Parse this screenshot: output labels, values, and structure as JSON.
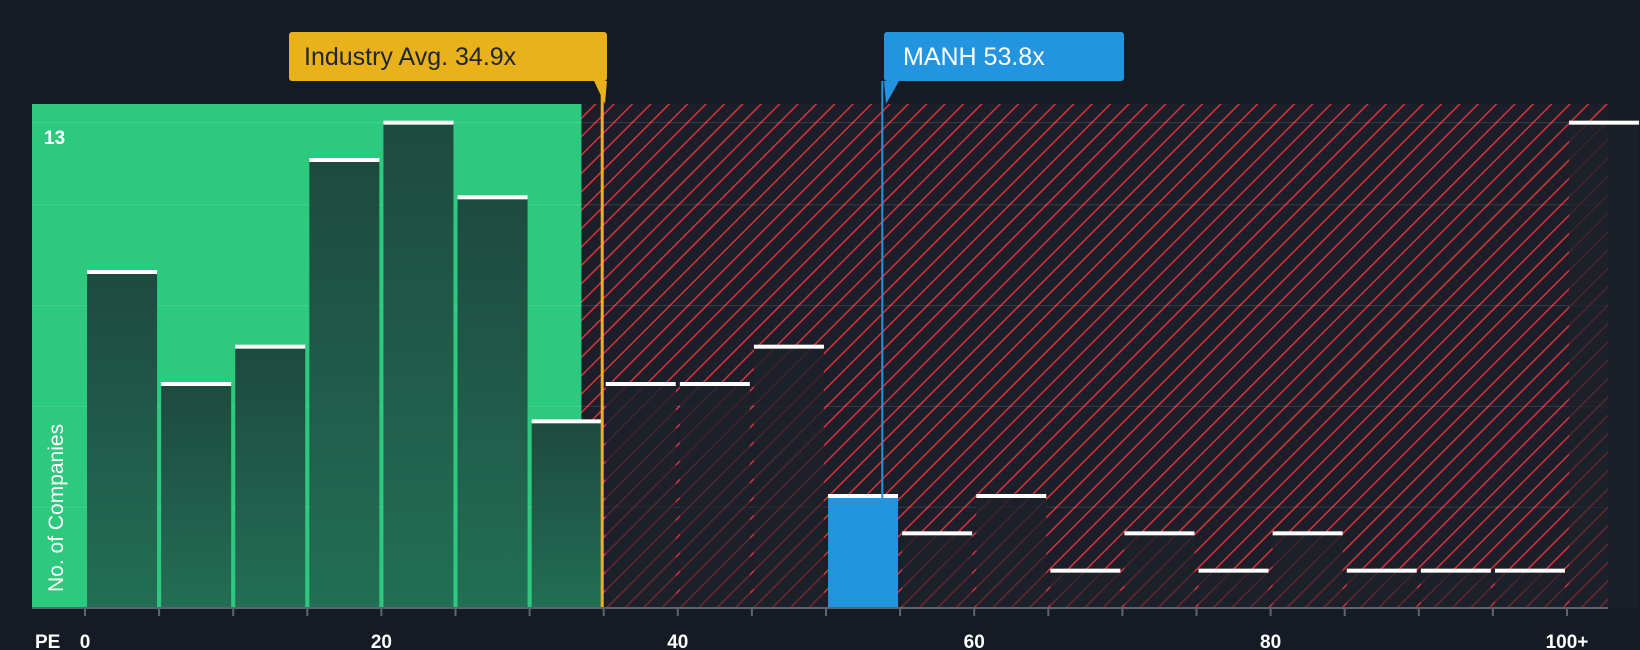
{
  "chart_data": {
    "type": "bar",
    "x_axis_name": "PE",
    "y_axis_name": "No. of Companies",
    "y_max_label": "13",
    "ylim": [
      0,
      13.5
    ],
    "x_ticks": [
      "0",
      "20",
      "40",
      "60",
      "80",
      "100+"
    ],
    "bins": [
      {
        "x0": 0,
        "x1": 5,
        "value": 9
      },
      {
        "x0": 5,
        "x1": 10,
        "value": 6
      },
      {
        "x0": 10,
        "x1": 15,
        "value": 7
      },
      {
        "x0": 15,
        "x1": 20,
        "value": 12
      },
      {
        "x0": 20,
        "x1": 25,
        "value": 13
      },
      {
        "x0": 25,
        "x1": 30,
        "value": 11
      },
      {
        "x0": 30,
        "x1": 35,
        "value": 5
      },
      {
        "x0": 35,
        "x1": 40,
        "value": 6
      },
      {
        "x0": 40,
        "x1": 45,
        "value": 6
      },
      {
        "x0": 45,
        "x1": 50,
        "value": 7
      },
      {
        "x0": 50,
        "x1": 55,
        "value": 3,
        "highlight": true
      },
      {
        "x0": 55,
        "x1": 60,
        "value": 2
      },
      {
        "x0": 60,
        "x1": 65,
        "value": 3
      },
      {
        "x0": 65,
        "x1": 70,
        "value": 1
      },
      {
        "x0": 70,
        "x1": 75,
        "value": 2
      },
      {
        "x0": 75,
        "x1": 80,
        "value": 1
      },
      {
        "x0": 80,
        "x1": 85,
        "value": 2
      },
      {
        "x0": 85,
        "x1": 90,
        "value": 1
      },
      {
        "x0": 90,
        "x1": 95,
        "value": 1
      },
      {
        "x0": 95,
        "x1": 100,
        "value": 1
      },
      {
        "x0": 100,
        "x1": 105,
        "value": 13
      }
    ],
    "industry_avg": {
      "label": "Industry Avg. 34.9x",
      "value": 34.9
    },
    "company": {
      "label": "MANH 53.8x",
      "ticker": "MANH",
      "value": 53.8
    },
    "fair_zone_end": 33.5,
    "grid": true,
    "colors": {
      "background": "#151b24",
      "fair_zone": "#2dc97e",
      "bar": "#1e4b3e",
      "bar_top": "#ffffff",
      "highlight_bar": "#2394e0",
      "hatch": "#d8333a",
      "industry_callout": "#e9b21a",
      "company_callout": "#2394e0"
    }
  }
}
